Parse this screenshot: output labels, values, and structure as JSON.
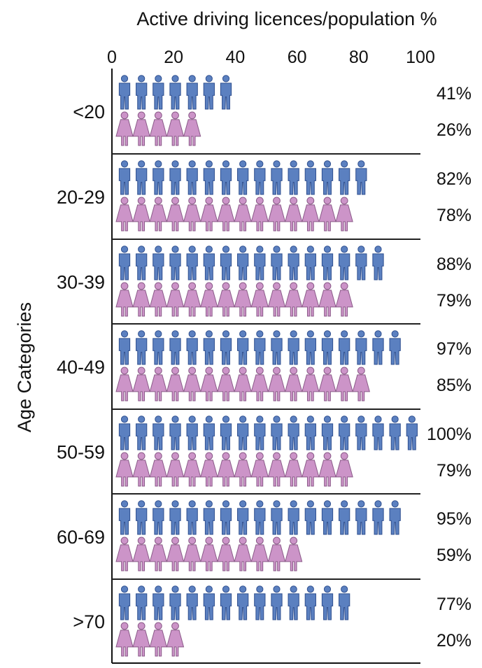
{
  "chart_data": {
    "type": "pictogram-bar",
    "title": "Active driving licences/population %",
    "xlabel": "Active driving licences/population %",
    "ylabel": "Age Categories",
    "xlim": [
      0,
      100
    ],
    "x_ticks": [
      "0",
      "20",
      "40",
      "60",
      "80",
      "100"
    ],
    "categories": [
      "<20",
      "20-29",
      "30-39",
      "40-49",
      "50-59",
      "60-69",
      ">70"
    ],
    "series": [
      {
        "values": [
          41,
          82,
          88,
          97,
          100,
          95,
          77
        ],
        "labels": [
          "41%",
          "82%",
          "88%",
          "97%",
          "100%",
          "95%",
          "77%"
        ]
      },
      {
        "values": [
          26,
          78,
          79,
          85,
          79,
          59,
          20
        ],
        "labels": [
          "26%",
          "78%",
          "79%",
          "85%",
          "79%",
          "59%",
          "20%"
        ]
      }
    ],
    "colors": {
      "male": "#5b80c0",
      "male_dark": "#2f4f8f",
      "female": "#cc94c8",
      "female_dark": "#8a5a88"
    }
  }
}
